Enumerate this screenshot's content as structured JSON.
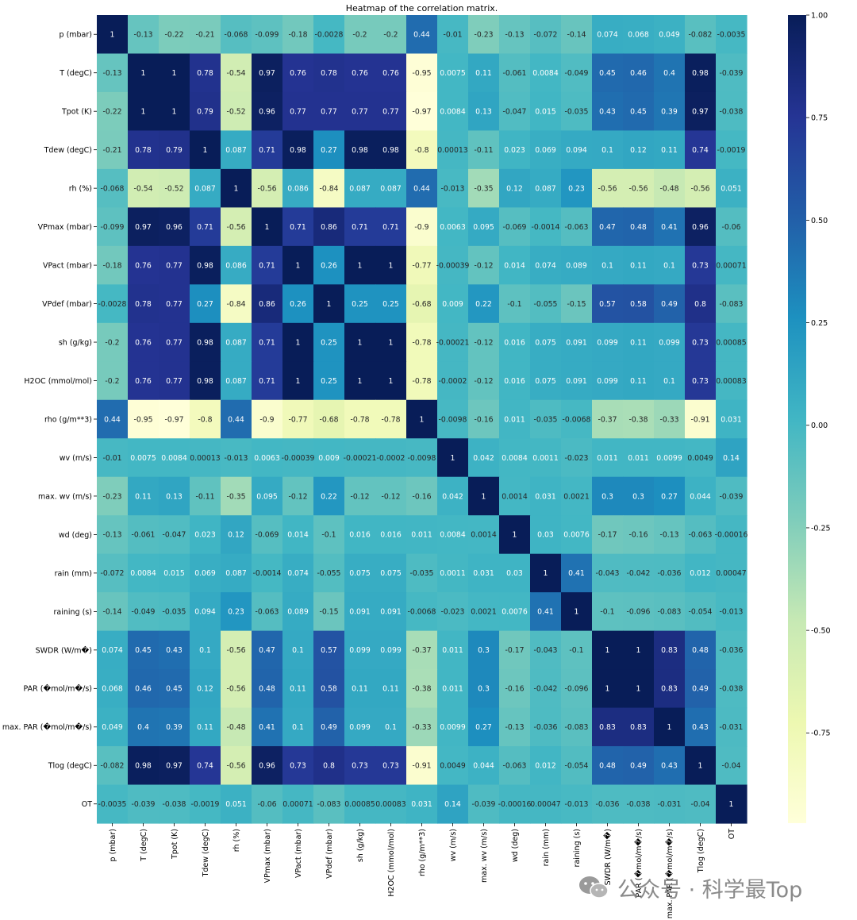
{
  "chart_data": {
    "type": "heatmap",
    "title": "Heatmap of the correlation matrix.",
    "xlabel": "",
    "ylabel": "",
    "labels": [
      "p (mbar)",
      "T (degC)",
      "Tpot (K)",
      "Tdew (degC)",
      "rh (%)",
      "VPmax (mbar)",
      "VPact (mbar)",
      "VPdef (mbar)",
      "sh (g/kg)",
      "H2OC (mmol/mol)",
      "rho (g/m**3)",
      "wv (m/s)",
      "max. wv (m/s)",
      "wd (deg)",
      "rain (mm)",
      "raining (s)",
      "SWDR (W/m�)",
      "PAR (�mol/m�/s)",
      "max. PAR (�mol/m�/s)",
      "Tlog (degC)",
      "OT"
    ],
    "values": [
      [
        1,
        -0.13,
        -0.22,
        -0.21,
        -0.068,
        -0.099,
        -0.18,
        -0.0028,
        -0.2,
        -0.2,
        0.44,
        -0.01,
        -0.23,
        -0.13,
        -0.072,
        -0.14,
        0.074,
        0.068,
        0.049,
        -0.082,
        -0.0035
      ],
      [
        -0.13,
        1,
        1,
        0.78,
        -0.54,
        0.97,
        0.76,
        0.78,
        0.76,
        0.76,
        -0.95,
        0.0075,
        0.11,
        -0.061,
        0.0084,
        -0.049,
        0.45,
        0.46,
        0.4,
        0.98,
        -0.039
      ],
      [
        -0.22,
        1,
        1,
        0.79,
        -0.52,
        0.96,
        0.77,
        0.77,
        0.77,
        0.77,
        -0.97,
        0.0084,
        0.13,
        -0.047,
        0.015,
        -0.035,
        0.43,
        0.45,
        0.39,
        0.97,
        -0.038
      ],
      [
        -0.21,
        0.78,
        0.79,
        1,
        0.087,
        0.71,
        0.98,
        0.27,
        0.98,
        0.98,
        -0.8,
        0.00013,
        -0.11,
        0.023,
        0.069,
        0.094,
        0.1,
        0.12,
        0.11,
        0.74,
        -0.0019
      ],
      [
        -0.068,
        -0.54,
        -0.52,
        0.087,
        1,
        -0.56,
        0.086,
        -0.84,
        0.087,
        0.087,
        0.44,
        -0.013,
        -0.35,
        0.12,
        0.087,
        0.23,
        -0.56,
        -0.56,
        -0.48,
        -0.56,
        0.051
      ],
      [
        -0.099,
        0.97,
        0.96,
        0.71,
        -0.56,
        1,
        0.71,
        0.86,
        0.71,
        0.71,
        -0.9,
        0.0063,
        0.095,
        -0.069,
        -0.0014,
        -0.063,
        0.47,
        0.48,
        0.41,
        0.96,
        -0.06
      ],
      [
        -0.18,
        0.76,
        0.77,
        0.98,
        0.086,
        0.71,
        1,
        0.26,
        1,
        1,
        -0.77,
        -0.00039,
        -0.12,
        0.014,
        0.074,
        0.089,
        0.1,
        0.11,
        0.1,
        0.73,
        0.00071
      ],
      [
        -0.0028,
        0.78,
        0.77,
        0.27,
        -0.84,
        0.86,
        0.26,
        1,
        0.25,
        0.25,
        -0.68,
        0.009,
        0.22,
        -0.1,
        -0.055,
        -0.15,
        0.57,
        0.58,
        0.49,
        0.8,
        -0.083
      ],
      [
        -0.2,
        0.76,
        0.77,
        0.98,
        0.087,
        0.71,
        1,
        0.25,
        1,
        1,
        -0.78,
        -0.00021,
        -0.12,
        0.016,
        0.075,
        0.091,
        0.099,
        0.11,
        0.099,
        0.73,
        0.00085
      ],
      [
        -0.2,
        0.76,
        0.77,
        0.98,
        0.087,
        0.71,
        1,
        0.25,
        1,
        1,
        -0.78,
        -0.0002,
        -0.12,
        0.016,
        0.075,
        0.091,
        0.099,
        0.11,
        0.1,
        0.73,
        0.00083
      ],
      [
        0.44,
        -0.95,
        -0.97,
        -0.8,
        0.44,
        -0.9,
        -0.77,
        -0.68,
        -0.78,
        -0.78,
        1,
        -0.0098,
        -0.16,
        0.011,
        -0.035,
        -0.0068,
        -0.37,
        -0.38,
        -0.33,
        -0.91,
        0.031
      ],
      [
        -0.01,
        0.0075,
        0.0084,
        0.00013,
        -0.013,
        0.0063,
        -0.00039,
        0.009,
        -0.00021,
        -0.0002,
        -0.0098,
        1,
        0.042,
        0.0084,
        0.0011,
        -0.023,
        0.011,
        0.011,
        0.0099,
        0.0049,
        0.14
      ],
      [
        -0.23,
        0.11,
        0.13,
        -0.11,
        -0.35,
        0.095,
        -0.12,
        0.22,
        -0.12,
        -0.12,
        -0.16,
        0.042,
        1,
        0.0014,
        0.031,
        0.0021,
        0.3,
        0.3,
        0.27,
        0.044,
        -0.039
      ],
      [
        -0.13,
        -0.061,
        -0.047,
        0.023,
        0.12,
        -0.069,
        0.014,
        -0.1,
        0.016,
        0.016,
        0.011,
        0.0084,
        0.0014,
        1,
        0.03,
        0.0076,
        -0.17,
        -0.16,
        -0.13,
        -0.063,
        -0.00016
      ],
      [
        -0.072,
        0.0084,
        0.015,
        0.069,
        0.087,
        -0.0014,
        0.074,
        -0.055,
        0.075,
        0.075,
        -0.035,
        0.0011,
        0.031,
        0.03,
        1,
        0.41,
        -0.043,
        -0.042,
        -0.036,
        0.012,
        0.00047
      ],
      [
        -0.14,
        -0.049,
        -0.035,
        0.094,
        0.23,
        -0.063,
        0.089,
        -0.15,
        0.091,
        0.091,
        -0.0068,
        -0.023,
        0.0021,
        0.0076,
        0.41,
        1,
        -0.1,
        -0.096,
        -0.083,
        -0.054,
        -0.013
      ],
      [
        0.074,
        0.45,
        0.43,
        0.1,
        -0.56,
        0.47,
        0.1,
        0.57,
        0.099,
        0.099,
        -0.37,
        0.011,
        0.3,
        -0.17,
        -0.043,
        -0.1,
        1,
        1,
        0.83,
        0.48,
        -0.036
      ],
      [
        0.068,
        0.46,
        0.45,
        0.12,
        -0.56,
        0.48,
        0.11,
        0.58,
        0.11,
        0.11,
        -0.38,
        0.011,
        0.3,
        -0.16,
        -0.042,
        -0.096,
        1,
        1,
        0.83,
        0.49,
        -0.038
      ],
      [
        0.049,
        0.4,
        0.39,
        0.11,
        -0.48,
        0.41,
        0.1,
        0.49,
        0.099,
        0.1,
        -0.33,
        0.0099,
        0.27,
        -0.13,
        -0.036,
        -0.083,
        0.83,
        0.83,
        1,
        0.43,
        -0.031
      ],
      [
        -0.082,
        0.98,
        0.97,
        0.74,
        -0.56,
        0.96,
        0.73,
        0.8,
        0.73,
        0.73,
        -0.91,
        0.0049,
        0.044,
        -0.063,
        0.012,
        -0.054,
        0.48,
        0.49,
        0.43,
        1,
        -0.04
      ],
      [
        -0.0035,
        -0.039,
        -0.038,
        -0.0019,
        0.051,
        -0.06,
        0.00071,
        -0.083,
        0.00085,
        0.00083,
        0.031,
        0.14,
        -0.039,
        -0.00016,
        0.00047,
        -0.013,
        -0.036,
        -0.038,
        -0.031,
        -0.04,
        1
      ]
    ],
    "colorbar": {
      "cmap": "YlGnBu",
      "range": [
        -0.97,
        1.0
      ],
      "ticks": [
        1.0,
        0.75,
        0.5,
        0.25,
        0.0,
        -0.25,
        -0.5,
        -0.75
      ],
      "tick_labels": [
        "1.00",
        "0.75",
        "0.50",
        "0.25",
        "0.00",
        "-0.25",
        "-0.50",
        "-0.75"
      ]
    },
    "colors": [
      "#ffffd9",
      "#edf8b1",
      "#c7e9b4",
      "#7fcdbb",
      "#41b6c4",
      "#1d91c0",
      "#225ea8",
      "#253494",
      "#081d58"
    ]
  },
  "watermark": {
    "text": "公众号 · 科学最Top",
    "icon": "wechat-icon"
  }
}
